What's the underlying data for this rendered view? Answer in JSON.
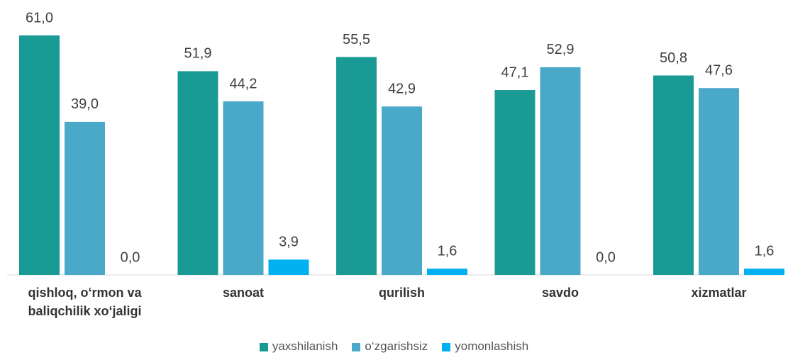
{
  "chart_data": {
    "type": "bar",
    "categories": [
      "qishloq, o‘rmon va baliqchilik xo‘jaligi",
      "sanoat",
      "qurilish",
      "savdo",
      "xizmatlar"
    ],
    "series": [
      {
        "name": "yaxshilanish",
        "color": "#1a9a94",
        "values": [
          61.0,
          51.9,
          55.5,
          47.1,
          50.8
        ],
        "value_labels": [
          "61,0",
          "51,9",
          "55,5",
          "47,1",
          "50,8"
        ]
      },
      {
        "name": "o‘zgarishsiz",
        "color": "#4aa8c8",
        "values": [
          39.0,
          44.2,
          42.9,
          52.9,
          47.6
        ],
        "value_labels": [
          "39,0",
          "44,2",
          "42,9",
          "52,9",
          "47,6"
        ]
      },
      {
        "name": "yomonlashish",
        "color": "#00b0f0",
        "values": [
          0.0,
          3.9,
          1.6,
          0.0,
          1.6
        ],
        "value_labels": [
          "0,0",
          "3,9",
          "1,6",
          "0,0",
          "1,6"
        ]
      }
    ],
    "legend": "bottom"
  }
}
